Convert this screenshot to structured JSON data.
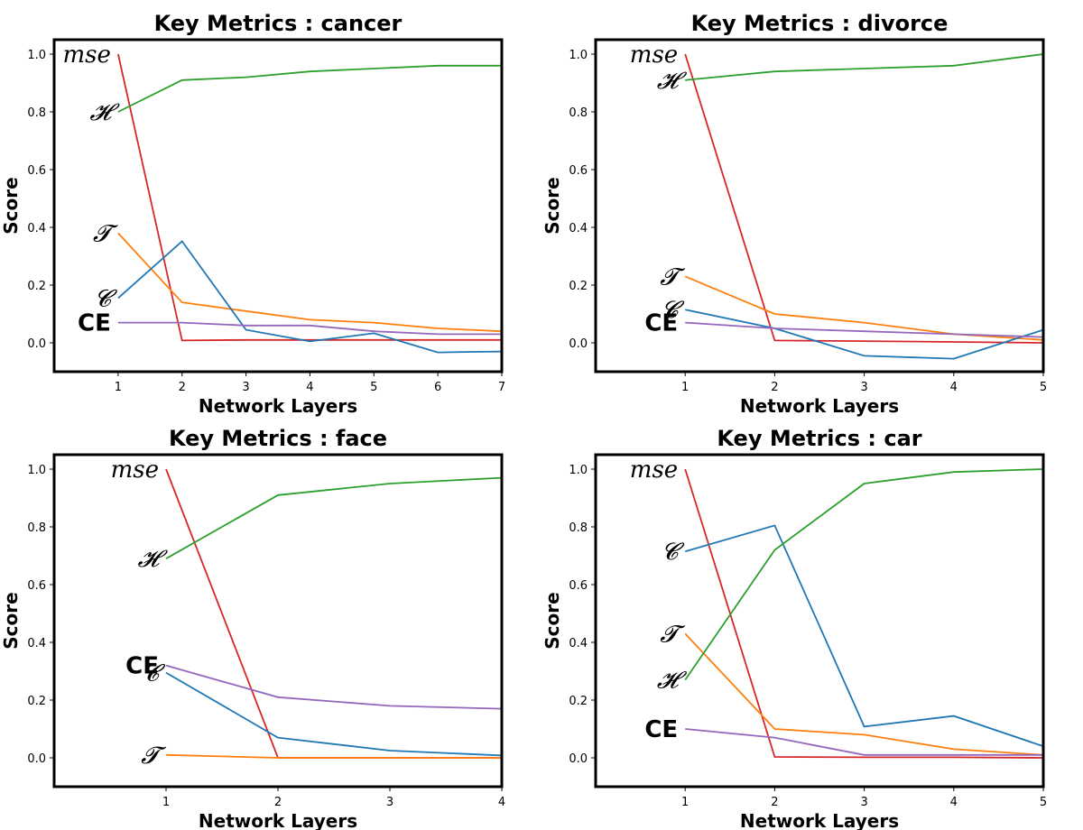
{
  "chart_data": [
    {
      "type": "line",
      "title": "Key Metrics : cancer",
      "xlabel": "Network Layers",
      "ylabel": "Score",
      "xlim": [
        0,
        7
      ],
      "ylim": [
        -0.1,
        1.05
      ],
      "xticks": [
        1,
        2,
        3,
        4,
        5,
        6,
        7
      ],
      "yticks": [
        "1.0",
        "0.8",
        "0.6",
        "0.4",
        "0.2",
        "0.0"
      ],
      "x": [
        1,
        2,
        3,
        4,
        5,
        6,
        7
      ],
      "series": [
        {
          "name": "mse",
          "label": "mse",
          "style": "italic",
          "color": "#d62728",
          "label_y": 1.0,
          "values": [
            1.0,
            0.008,
            0.01,
            0.01,
            0.01,
            0.01,
            0.01
          ]
        },
        {
          "name": "H",
          "label": "𝓗",
          "style": "italic",
          "color": "#2ca02c",
          "label_y": 0.8,
          "values": [
            0.8,
            0.91,
            0.92,
            0.94,
            0.95,
            0.96,
            0.96
          ]
        },
        {
          "name": "T",
          "label": "𝓣",
          "style": "italic",
          "color": "#ff7f0e",
          "label_y": 0.38,
          "values": [
            0.38,
            0.14,
            0.11,
            0.08,
            0.07,
            0.05,
            0.04
          ]
        },
        {
          "name": "C",
          "label": "𝓒",
          "style": "italic",
          "color": "#1f77b4",
          "label_y": 0.155,
          "values": [
            0.155,
            0.352,
            0.045,
            0.005,
            0.033,
            -0.033,
            -0.03
          ]
        },
        {
          "name": "CE",
          "label": "CE",
          "style": "bold",
          "color": "#9467bd",
          "label_y": 0.07,
          "values": [
            0.07,
            0.07,
            0.06,
            0.06,
            0.04,
            0.03,
            0.03
          ]
        }
      ]
    },
    {
      "type": "line",
      "title": "Key Metrics : divorce",
      "xlabel": "Network Layers",
      "ylabel": "Score",
      "xlim": [
        0,
        5
      ],
      "ylim": [
        -0.1,
        1.05
      ],
      "xticks": [
        1,
        2,
        3,
        4,
        5
      ],
      "yticks": [
        "1.0",
        "0.8",
        "0.6",
        "0.4",
        "0.2",
        "0.0"
      ],
      "x": [
        1,
        2,
        3,
        4,
        5
      ],
      "series": [
        {
          "name": "mse",
          "label": "mse",
          "style": "italic",
          "color": "#d62728",
          "label_y": 1.0,
          "values": [
            1.0,
            0.008,
            0.006,
            0.003,
            0.0
          ]
        },
        {
          "name": "H",
          "label": "𝓗",
          "style": "italic",
          "color": "#2ca02c",
          "label_y": 0.91,
          "values": [
            0.91,
            0.94,
            0.95,
            0.96,
            1.0
          ]
        },
        {
          "name": "T",
          "label": "𝓣",
          "style": "italic",
          "color": "#ff7f0e",
          "label_y": 0.23,
          "values": [
            0.23,
            0.1,
            0.07,
            0.03,
            0.01
          ]
        },
        {
          "name": "C",
          "label": "𝓒",
          "style": "italic",
          "color": "#1f77b4",
          "label_y": 0.115,
          "values": [
            0.115,
            0.05,
            -0.045,
            -0.055,
            0.045
          ]
        },
        {
          "name": "CE",
          "label": "CE",
          "style": "bold",
          "color": "#9467bd",
          "label_y": 0.07,
          "values": [
            0.07,
            0.05,
            0.04,
            0.03,
            0.02
          ]
        }
      ]
    },
    {
      "type": "line",
      "title": "Key Metrics : face",
      "xlabel": "Network Layers",
      "ylabel": "Score",
      "xlim": [
        0,
        4
      ],
      "ylim": [
        -0.1,
        1.05
      ],
      "xticks": [
        1,
        2,
        3,
        4
      ],
      "yticks": [
        "1.0",
        "0.8",
        "0.6",
        "0.4",
        "0.2",
        "0.0"
      ],
      "x": [
        1,
        2,
        3,
        4
      ],
      "series": [
        {
          "name": "mse",
          "label": "mse",
          "style": "italic",
          "color": "#d62728",
          "label_y": 1.0,
          "values": [
            1.0,
            0.0,
            0.0,
            0.0
          ]
        },
        {
          "name": "H",
          "label": "𝓗",
          "style": "italic",
          "color": "#2ca02c",
          "label_y": 0.69,
          "values": [
            0.69,
            0.91,
            0.95,
            0.97
          ]
        },
        {
          "name": "CE",
          "label": "CE",
          "style": "bold",
          "color": "#9467bd",
          "label_y": 0.32,
          "values": [
            0.32,
            0.21,
            0.18,
            0.17
          ]
        },
        {
          "name": "C",
          "label": "𝓒",
          "style": "italic",
          "color": "#1f77b4",
          "label_y": 0.295,
          "values": [
            0.295,
            0.07,
            0.025,
            0.008
          ]
        },
        {
          "name": "T",
          "label": "𝓣",
          "style": "italic",
          "color": "#ff7f0e",
          "label_y": 0.01,
          "values": [
            0.01,
            0.0,
            0.0,
            0.0
          ]
        }
      ]
    },
    {
      "type": "line",
      "title": "Key Metrics : car",
      "xlabel": "Network Layers",
      "ylabel": "Score",
      "xlim": [
        0,
        5
      ],
      "ylim": [
        -0.1,
        1.05
      ],
      "xticks": [
        1,
        2,
        3,
        4,
        5
      ],
      "yticks": [
        "1.0",
        "0.8",
        "0.6",
        "0.4",
        "0.2",
        "0.0"
      ],
      "x": [
        1,
        2,
        3,
        4,
        5
      ],
      "series": [
        {
          "name": "mse",
          "label": "mse",
          "style": "italic",
          "color": "#d62728",
          "label_y": 1.0,
          "values": [
            1.0,
            0.003,
            0.002,
            0.002,
            0.0
          ]
        },
        {
          "name": "C",
          "label": "𝓒",
          "style": "italic",
          "color": "#1f77b4",
          "label_y": 0.715,
          "values": [
            0.715,
            0.805,
            0.108,
            0.145,
            0.04
          ]
        },
        {
          "name": "T",
          "label": "𝓣",
          "style": "italic",
          "color": "#ff7f0e",
          "label_y": 0.43,
          "values": [
            0.43,
            0.1,
            0.08,
            0.03,
            0.01
          ]
        },
        {
          "name": "H",
          "label": "𝓗",
          "style": "italic",
          "color": "#2ca02c",
          "label_y": 0.27,
          "values": [
            0.27,
            0.72,
            0.95,
            0.99,
            1.0
          ]
        },
        {
          "name": "CE",
          "label": "CE",
          "style": "bold",
          "color": "#9467bd",
          "label_y": 0.1,
          "values": [
            0.1,
            0.07,
            0.01,
            0.01,
            0.01
          ]
        }
      ]
    }
  ]
}
